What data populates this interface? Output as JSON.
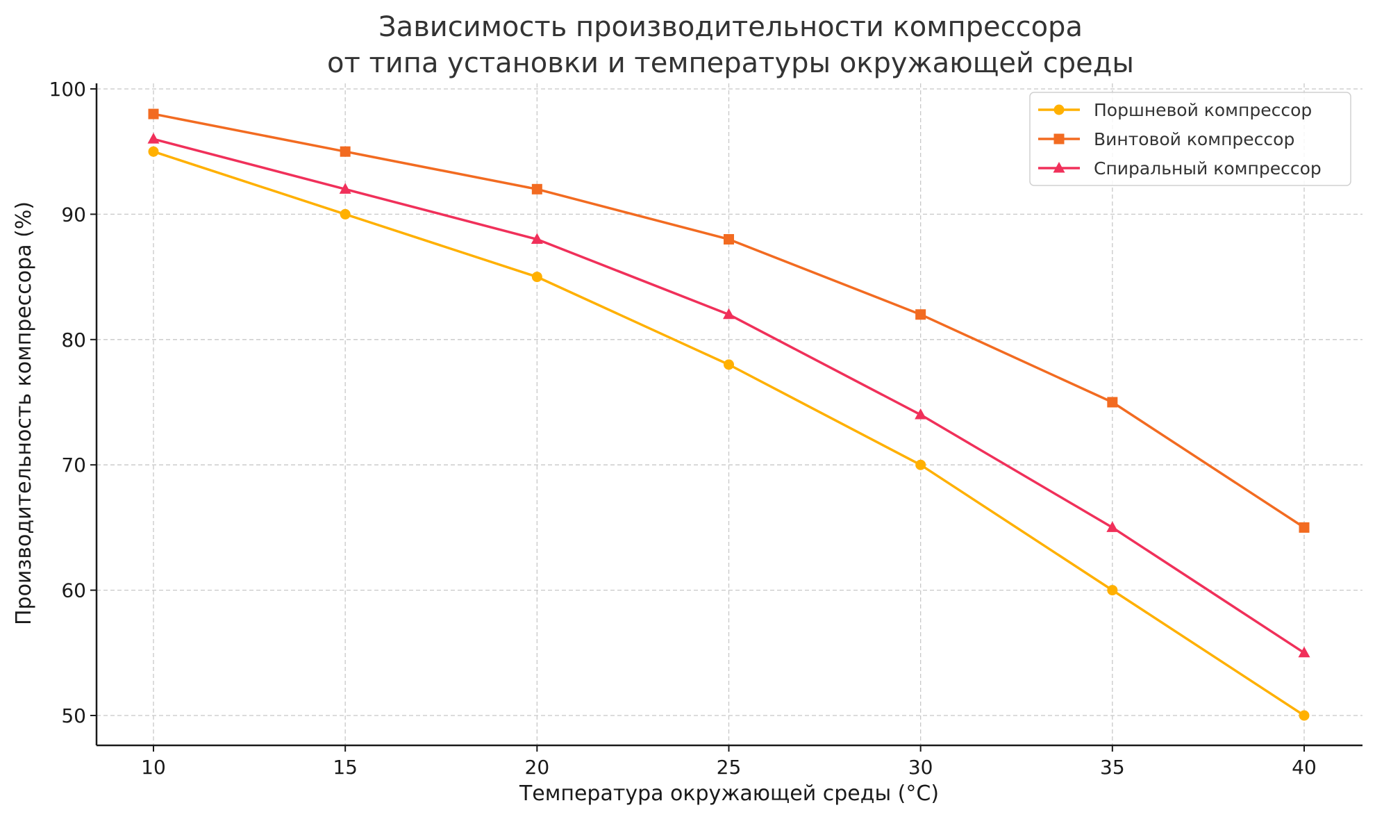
{
  "chart_data": {
    "type": "line",
    "title": "Зависимость производительности компрессора\nот типа установки и температуры окружающей среды",
    "title_lines": [
      "Зависимость производительности компрессора",
      "от типа установки и температуры окружающей среды"
    ],
    "xlabel": "Температура окружающей среды (°C)",
    "ylabel": "Производительность компрессора (%)",
    "x": [
      10,
      15,
      20,
      25,
      30,
      35,
      40
    ],
    "xticks": [
      10,
      15,
      20,
      25,
      30,
      35,
      40
    ],
    "yticks": [
      50,
      60,
      70,
      80,
      90,
      100
    ],
    "xlim": [
      8.5,
      41.5
    ],
    "ylim": [
      47.6,
      101.2
    ],
    "grid": true,
    "legend_position": "upper right",
    "series": [
      {
        "name": "Поршневой компрессор",
        "color": "#FFB000",
        "marker": "circle",
        "values": [
          95,
          90,
          85,
          78,
          70,
          60,
          50
        ]
      },
      {
        "name": "Винтовой компрессор",
        "color": "#F26B21",
        "marker": "square",
        "values": [
          98,
          95,
          92,
          88,
          82,
          75,
          65
        ]
      },
      {
        "name": "Спиральный компрессор",
        "color": "#F0305A",
        "marker": "triangle",
        "values": [
          96,
          92,
          88,
          82,
          74,
          65,
          55
        ]
      }
    ]
  }
}
